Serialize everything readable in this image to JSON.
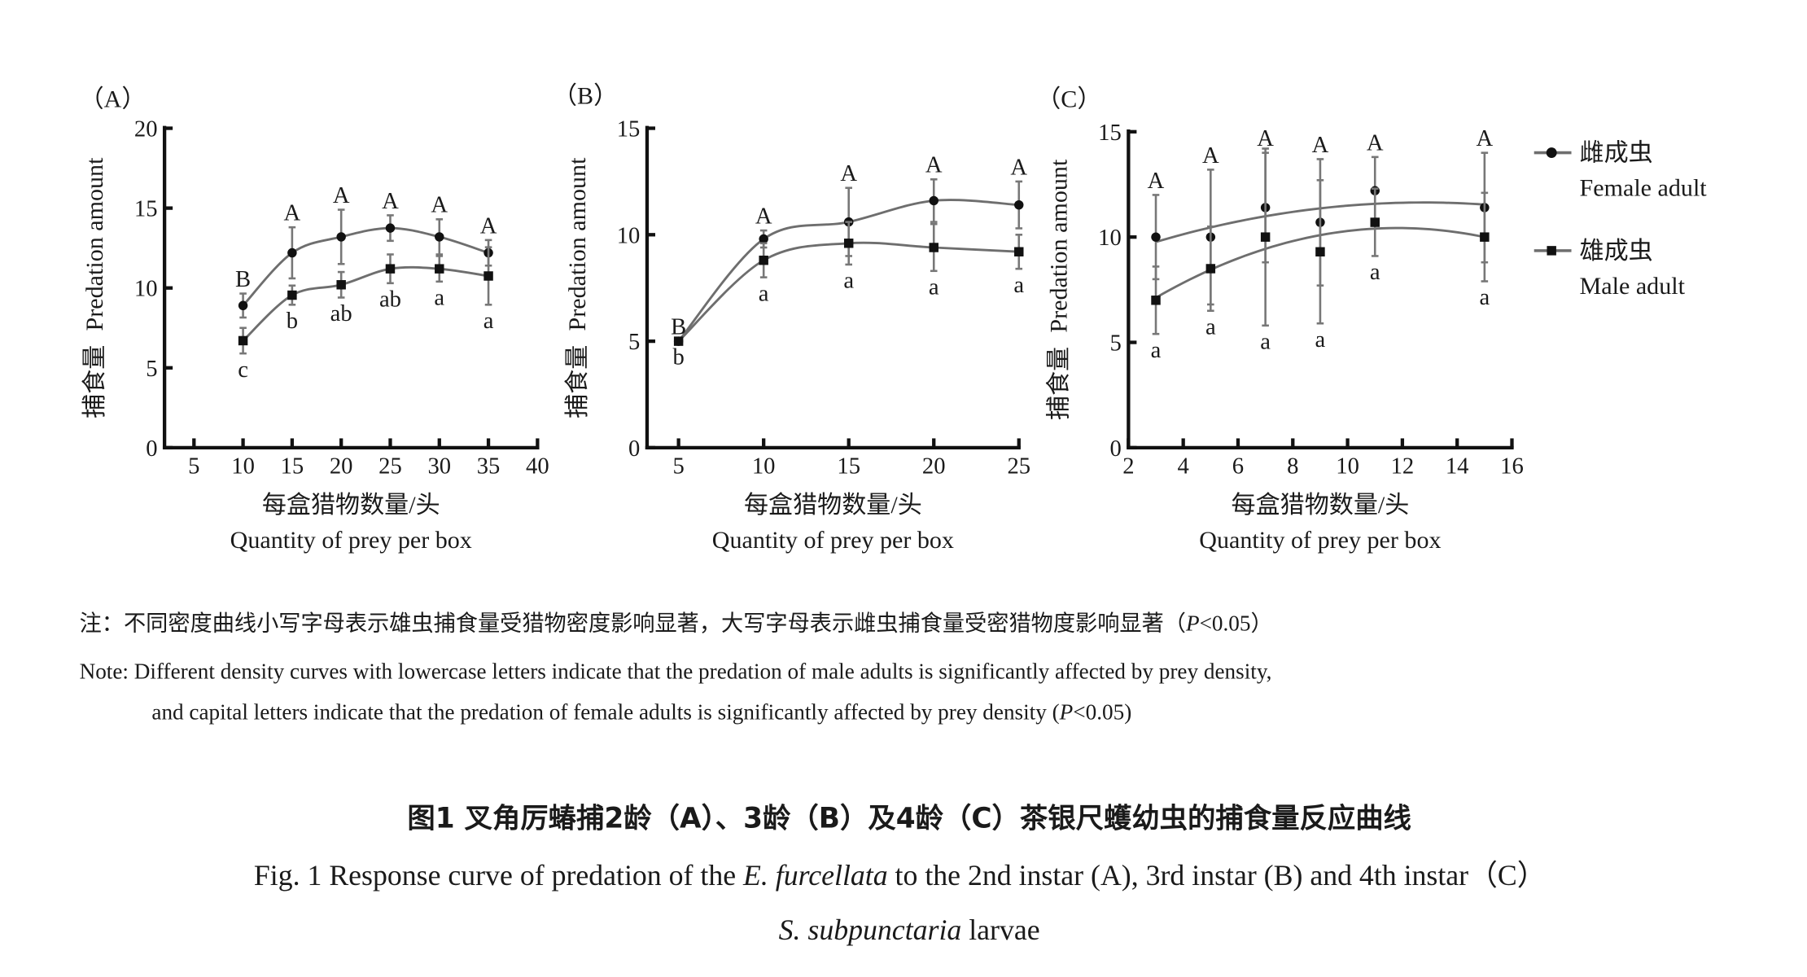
{
  "legend": {
    "female_cn": "雌成虫",
    "female_en": "Female adult",
    "male_cn": "雄成虫",
    "male_en": "Male adult"
  },
  "notes": {
    "cn": "注：不同密度曲线小写字母表示雄虫捕食量受猎物密度影响显著，大写字母表示雌虫捕食量受密猎物度影响显著（",
    "cn_p": "P",
    "cn_end": "<0.05）",
    "en_line1": "Note: Different density curves with lowercase letters indicate that the predation of male adults is significantly affected by prey density,",
    "en_line2": "and capital letters indicate that the predation of female adults is significantly affected by prey density (",
    "en_p": "P",
    "en_end": "<0.05)"
  },
  "caption": {
    "cn": "图1  叉角厉蝽捕2龄（A）、3龄（B）及4龄（C）茶银尺蠖幼虫的捕食量反应曲线",
    "en_a": "Fig. 1 Response curve of predation of the ",
    "en_species1": "E. furcellata",
    "en_b": " to the 2nd instar (A), 3rd instar (B) and 4th instar（C）",
    "en_species2": "S. subpunctaria",
    "en_c": " larvae"
  },
  "colors": {
    "line": "#6e6e6e",
    "marker": "#111111",
    "axis": "#111111"
  },
  "chart_data": [
    {
      "type": "line",
      "title": "（A）",
      "xlabel_cn": "每盒猎物数量/头",
      "xlabel": "Quantity of prey per box",
      "ylabel_cn": "捕食量",
      "ylabel": "Predation amount",
      "xlim": [
        2,
        40
      ],
      "ylim": [
        0,
        20
      ],
      "xticks": [
        5,
        10,
        15,
        20,
        25,
        30,
        35,
        40
      ],
      "yticks": [
        0,
        5,
        10,
        15,
        20
      ],
      "series": [
        {
          "name": "雌成虫 Female adult",
          "marker": "circle",
          "x": [
            10,
            15,
            20,
            25,
            30,
            35
          ],
          "values": [
            8.9,
            12.2,
            13.2,
            13.75,
            13.2,
            12.2
          ],
          "errors": [
            0.75,
            1.6,
            1.7,
            0.8,
            1.1,
            0.8
          ],
          "letters": [
            "B",
            "A",
            "A",
            "A",
            "A",
            "A"
          ]
        },
        {
          "name": "雄成虫 Male adult",
          "marker": "square",
          "x": [
            10,
            15,
            20,
            25,
            30,
            35
          ],
          "values": [
            6.7,
            9.55,
            10.2,
            11.2,
            11.2,
            10.75
          ],
          "errors": [
            0.8,
            0.6,
            0.8,
            0.9,
            0.8,
            1.8
          ],
          "letters": [
            "c",
            "b",
            "ab",
            "ab",
            "a",
            "a"
          ]
        }
      ]
    },
    {
      "type": "line",
      "title": "（B）",
      "xlabel_cn": "每盒猎物数量/头",
      "xlabel": "Quantity of prey per box",
      "ylabel_cn": "捕食量",
      "ylabel": "Predation amount",
      "xlim": [
        3.15,
        25
      ],
      "ylim": [
        0,
        15
      ],
      "xticks": [
        5,
        10,
        15,
        20,
        25
      ],
      "yticks": [
        0,
        5,
        10,
        15
      ],
      "series": [
        {
          "name": "雌成虫 Female adult",
          "marker": "circle",
          "x": [
            5,
            10,
            15,
            20,
            25
          ],
          "values": [
            5.0,
            9.8,
            10.6,
            11.6,
            11.4
          ],
          "errors": [
            0,
            0.4,
            1.6,
            1.0,
            1.1
          ],
          "letters": [
            "B",
            "A",
            "A",
            "A",
            "A"
          ]
        },
        {
          "name": "雄成虫 Male adult",
          "marker": "square",
          "x": [
            5,
            10,
            15,
            20,
            25
          ],
          "values": [
            5.0,
            8.8,
            9.6,
            9.4,
            9.2
          ],
          "errors": [
            0,
            0.8,
            1.0,
            1.1,
            0.8
          ],
          "letters": [
            "b",
            "a",
            "a",
            "a",
            "a"
          ]
        }
      ]
    },
    {
      "type": "line",
      "title": "（C）",
      "xlabel_cn": "每盒猎物数量/头",
      "xlabel": "Quantity of prey per box",
      "ylabel_cn": "捕食量",
      "ylabel": "Predation amount",
      "xlim": [
        2,
        16
      ],
      "ylim": [
        0,
        15
      ],
      "xticks": [
        2,
        4,
        6,
        8,
        10,
        12,
        14,
        16
      ],
      "yticks": [
        0,
        5,
        10,
        15
      ],
      "series": [
        {
          "name": "雌成虫 Female adult",
          "marker": "circle",
          "x": [
            3,
            5,
            7,
            9,
            11,
            15
          ],
          "values": [
            10.0,
            10.0,
            11.4,
            10.7,
            12.2,
            11.4
          ],
          "errors": [
            2.0,
            3.2,
            2.6,
            3.0,
            1.6,
            2.6
          ],
          "letters": [
            "A",
            "A",
            "A",
            "A",
            "A",
            "A"
          ]
        },
        {
          "name": "雄成虫 Male adult",
          "marker": "square",
          "x": [
            3,
            5,
            7,
            9,
            11,
            15
          ],
          "values": [
            7.0,
            8.5,
            10.0,
            9.3,
            10.7,
            10.0
          ],
          "errors": [
            1.6,
            2.0,
            4.2,
            3.4,
            1.6,
            2.1
          ],
          "letters": [
            "a",
            "a",
            "a",
            "a",
            "a",
            "a"
          ]
        }
      ]
    }
  ]
}
